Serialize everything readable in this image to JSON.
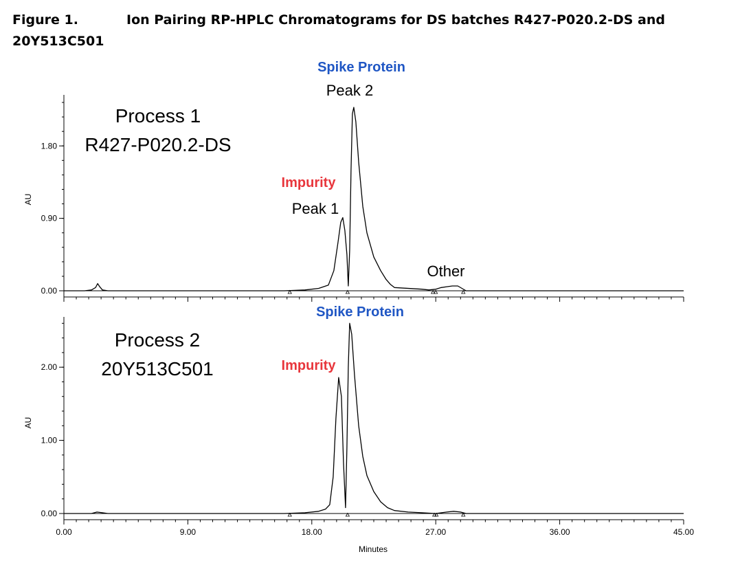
{
  "caption": {
    "figure_label": "Figure 1.",
    "title_line1": "Ion Pairing RP-HPLC Chromatograms for DS batches R427-P020.2-DS and",
    "title_line2": "20Y513C501"
  },
  "colors": {
    "spike_blue": "#1f56c4",
    "impurity_red": "#e8363c",
    "trace": "#000000"
  },
  "chart_data": [
    {
      "type": "line",
      "panel": "top",
      "ylabel": "AU",
      "xlabel": "",
      "xlim": [
        0,
        45
      ],
      "ylim": [
        -0.1,
        2.4
      ],
      "yticks": [
        0.0,
        0.9,
        1.8
      ],
      "ytick_labels": [
        "0.00",
        "0.90",
        "1.80"
      ],
      "annotations": {
        "sample_line1": "Process 1",
        "sample_line2": "R427-P020.2-DS",
        "spike": "Spike Protein",
        "peak2": "Peak 2",
        "impurity": "Impurity",
        "peak1": "Peak 1",
        "other": "Other"
      },
      "peaks": [
        {
          "label": "Peak 1 (Impurity)",
          "retention_min": 20.2,
          "height_au": 0.91
        },
        {
          "label": "Peak 2 (Spike Protein)",
          "retention_min": 20.8,
          "height_au": 2.28
        },
        {
          "label": "Other",
          "retention_min": 28.2,
          "height_au": 0.06
        }
      ],
      "series": [
        {
          "x": [
            0,
            1.5,
            2.0,
            2.3,
            2.45,
            2.6,
            2.8,
            3.2,
            4,
            10,
            16,
            17.5,
            18.5,
            19.2,
            19.6,
            19.9,
            20.1,
            20.25,
            20.4,
            20.55,
            20.65,
            20.75,
            20.85,
            20.95,
            21.05,
            21.2,
            21.4,
            21.7,
            22.0,
            22.5,
            23.0,
            23.4,
            23.7,
            24.0,
            26.0,
            26.5,
            27.0,
            27.4,
            27.8,
            28.2,
            28.6,
            28.9,
            29.2,
            30,
            35,
            40,
            45
          ],
          "y": [
            0,
            0,
            0.01,
            0.04,
            0.09,
            0.05,
            0.01,
            0,
            0,
            0,
            0,
            0.01,
            0.03,
            0.07,
            0.25,
            0.6,
            0.85,
            0.91,
            0.75,
            0.45,
            0.06,
            0.5,
            1.5,
            2.2,
            2.28,
            2.1,
            1.6,
            1.05,
            0.72,
            0.42,
            0.25,
            0.14,
            0.08,
            0.04,
            0.02,
            0.01,
            0.02,
            0.04,
            0.05,
            0.06,
            0.06,
            0.03,
            0,
            0,
            0,
            0,
            0
          ]
        }
      ]
    },
    {
      "type": "line",
      "panel": "bottom",
      "ylabel": "AU",
      "xlabel": "Minutes",
      "xlim": [
        0,
        45
      ],
      "ylim": [
        -0.1,
        2.65
      ],
      "yticks": [
        0.0,
        1.0,
        2.0
      ],
      "ytick_labels": [
        "0.00",
        "1.00",
        "2.00"
      ],
      "xticks": [
        0,
        9,
        18,
        27,
        36,
        45
      ],
      "xtick_labels": [
        "0.00",
        "9.00",
        "18.00",
        "27.00",
        "36.00",
        "45.00"
      ],
      "annotations": {
        "sample_line1": "Process 2",
        "sample_line2": "20Y513C501",
        "spike": "Spike Protein",
        "impurity": "Impurity"
      },
      "peaks": [
        {
          "label": "Impurity",
          "retention_min": 19.95,
          "height_au": 1.86
        },
        {
          "label": "Spike Protein",
          "retention_min": 20.75,
          "height_au": 2.6
        }
      ],
      "series": [
        {
          "x": [
            0,
            2.0,
            2.4,
            2.8,
            3.2,
            10,
            16,
            17.5,
            18.5,
            19.0,
            19.3,
            19.55,
            19.75,
            19.95,
            20.15,
            20.3,
            20.45,
            20.55,
            20.65,
            20.75,
            20.9,
            21.1,
            21.4,
            21.7,
            22.0,
            22.5,
            23.0,
            23.5,
            24.0,
            25.0,
            26.0,
            27.0,
            27.8,
            28.3,
            28.8,
            29.2,
            30,
            35,
            40,
            45
          ],
          "y": [
            0,
            0,
            0.02,
            0.01,
            0,
            0,
            0,
            0.01,
            0.03,
            0.06,
            0.12,
            0.5,
            1.3,
            1.86,
            1.6,
            0.7,
            0.08,
            0.9,
            2.0,
            2.6,
            2.45,
            1.9,
            1.2,
            0.78,
            0.52,
            0.3,
            0.16,
            0.08,
            0.04,
            0.02,
            0.01,
            0,
            0.02,
            0.03,
            0.02,
            0,
            0,
            0,
            0,
            0
          ]
        }
      ]
    }
  ]
}
